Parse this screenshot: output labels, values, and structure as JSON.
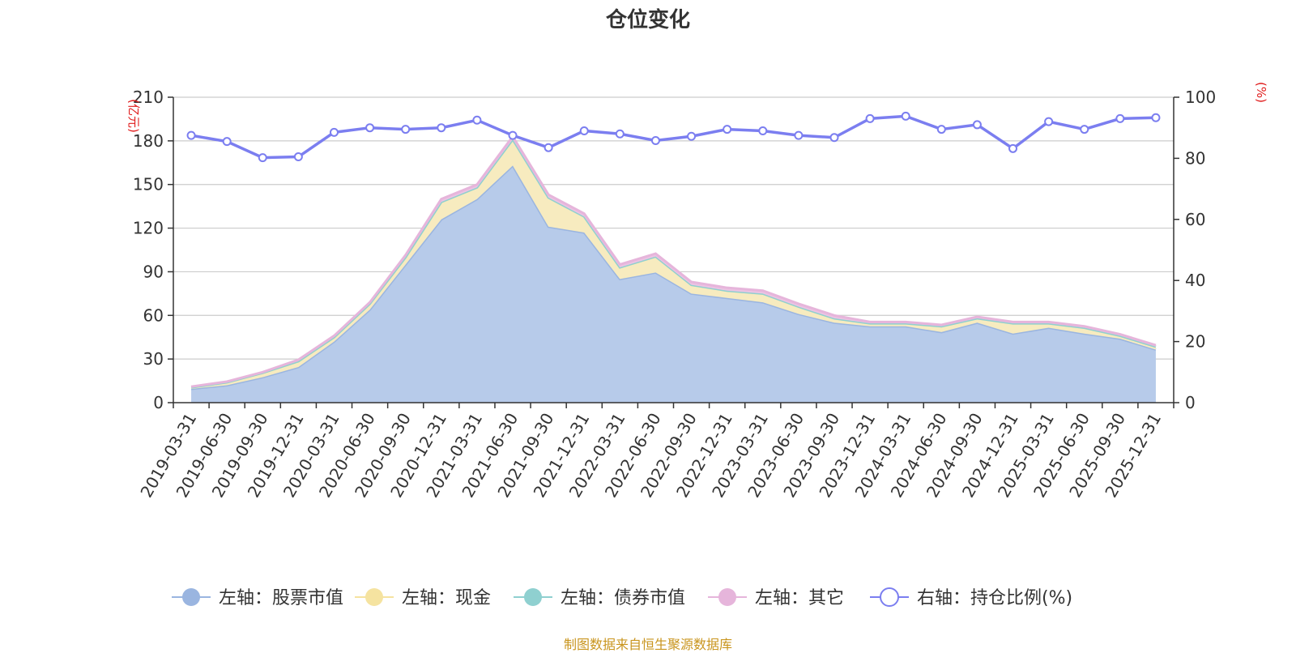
{
  "chart_data": {
    "type": "area",
    "title": "仓位变化",
    "source_note": "制图数据来自恒生聚源数据库",
    "left_axis": {
      "unit": "(亿元)",
      "range": [
        0,
        210
      ],
      "ticks": [
        0,
        30,
        60,
        90,
        120,
        150,
        180,
        210
      ]
    },
    "right_axis": {
      "unit": "(%)",
      "range": [
        0,
        100
      ],
      "ticks": [
        0,
        20,
        40,
        60,
        80,
        100
      ]
    },
    "categories": [
      "2019-03-31",
      "2019-06-30",
      "2019-09-30",
      "2019-12-31",
      "2020-03-31",
      "2020-06-30",
      "2020-09-30",
      "2020-12-31",
      "2021-03-31",
      "2021-06-30",
      "2021-09-30",
      "2021-12-31",
      "2022-03-31",
      "2022-06-30",
      "2022-09-30",
      "2022-12-31",
      "2023-03-31",
      "2023-06-30",
      "2023-09-30",
      "2023-12-31",
      "2024-03-31",
      "2024-06-30",
      "2024-09-30",
      "2024-12-31",
      "2025-03-31",
      "2025-06-30",
      "2025-09-30",
      "2025-12-31"
    ],
    "series": [
      {
        "name": "左轴：股票市值",
        "axis": "left",
        "color": "#9ab5e0",
        "fill": "#b7cbea",
        "values": [
          9.5,
          12,
          17.5,
          24.5,
          42,
          64,
          95,
          126,
          140,
          163,
          121,
          117,
          85,
          89.5,
          75,
          72,
          69,
          61,
          55,
          52.5,
          52.5,
          48.5,
          55,
          47.5,
          51.5,
          47.5,
          44,
          36.5
        ]
      },
      {
        "name": "左轴：现金",
        "axis": "left",
        "color": "#f5e3a0",
        "fill": "#f7ebbf",
        "values": [
          1,
          2,
          3,
          4,
          3,
          4,
          5,
          12,
          8,
          18,
          20,
          11,
          8,
          11,
          6,
          5,
          6,
          5,
          3,
          2,
          2,
          4,
          3,
          7,
          3,
          4,
          2,
          2
        ]
      },
      {
        "name": "左轴：债券市值",
        "axis": "left",
        "color": "#8fd0d0",
        "fill": "#a6d9d9",
        "values": [
          0,
          0,
          0,
          0,
          0,
          0,
          0,
          0,
          0,
          0,
          0,
          0,
          0,
          0,
          0,
          0,
          0,
          0,
          0,
          0,
          0,
          0,
          0,
          0,
          0,
          0,
          0,
          0
        ]
      },
      {
        "name": "左轴：其它",
        "axis": "left",
        "color": "#e6b5db",
        "fill": "#ecc3e3",
        "values": [
          0.5,
          0.5,
          0.5,
          1,
          1,
          1,
          1.5,
          2,
          2,
          2,
          2,
          2,
          2,
          2,
          2,
          2,
          2,
          2,
          2,
          1,
          1,
          1,
          1,
          1,
          1,
          1,
          1,
          1
        ]
      },
      {
        "name": "右轴：持仓比例(%)",
        "axis": "right",
        "color": "#7b7ef0",
        "values": [
          87.5,
          85.5,
          80.2,
          80.5,
          88.5,
          90,
          89.5,
          90,
          92.5,
          87.5,
          83.5,
          89,
          88,
          85.8,
          87.2,
          89.5,
          89,
          87.5,
          86.8,
          93,
          93.8,
          89.5,
          91,
          83.2,
          92,
          89.5,
          93,
          93.3
        ]
      }
    ],
    "legend_position": "bottom-center",
    "grid": true
  }
}
